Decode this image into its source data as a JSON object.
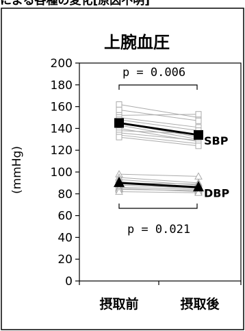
{
  "top_caption": "による各種の変化[原因不明]",
  "chart_data": {
    "type": "line",
    "title": "上腕血圧",
    "ylabel": "(mmHg)",
    "xlabel": "",
    "categories": [
      "摂取前",
      "摂取後"
    ],
    "ylim": [
      0,
      200
    ],
    "yticks": [
      0,
      20,
      40,
      60,
      80,
      100,
      120,
      140,
      160,
      180,
      200
    ],
    "grid": false,
    "series": [
      {
        "name": "SBP",
        "values": [
          145,
          134
        ],
        "marker": "square",
        "color": "#000000"
      },
      {
        "name": "DBP",
        "values": [
          90,
          86
        ],
        "marker": "triangle",
        "color": "#000000"
      }
    ],
    "individual_sbp": [
      [
        162,
        150
      ],
      [
        157,
        147
      ],
      [
        152,
        153
      ],
      [
        150,
        141
      ],
      [
        148,
        138
      ],
      [
        145,
        132
      ],
      [
        143,
        130
      ],
      [
        140,
        128
      ],
      [
        138,
        135
      ],
      [
        136,
        129
      ],
      [
        134,
        126
      ],
      [
        132,
        124
      ]
    ],
    "individual_dbp": [
      [
        98,
        96
      ],
      [
        95,
        90
      ],
      [
        93,
        88
      ],
      [
        91,
        86
      ],
      [
        90,
        89
      ],
      [
        88,
        85
      ],
      [
        86,
        84
      ],
      [
        85,
        82
      ],
      [
        84,
        83
      ],
      [
        82,
        81
      ]
    ],
    "individual_color": "#aaaaaa",
    "annotations": [
      {
        "text": "p = 0.006",
        "pair": "SBP"
      },
      {
        "text": "p = 0.021",
        "pair": "DBP"
      }
    ]
  }
}
